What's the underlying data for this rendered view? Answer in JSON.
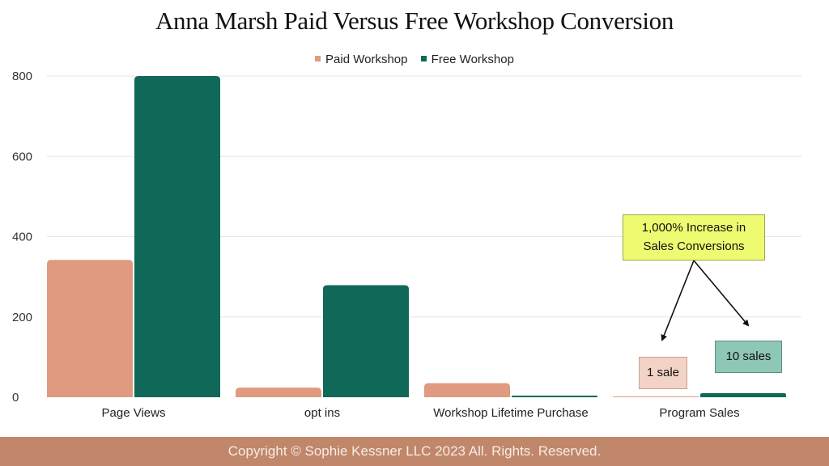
{
  "chart_data": {
    "type": "bar",
    "title": "Anna Marsh Paid Versus Free Workshop Conversion",
    "categories": [
      "Page Views",
      "opt ins",
      "Workshop Lifetime Purchase",
      "Program Sales"
    ],
    "series": [
      {
        "name": "Paid Workshop",
        "color": "#e09a80",
        "values": [
          342,
          24,
          35,
          1
        ]
      },
      {
        "name": "Free Workshop",
        "color": "#106858",
        "values": [
          800,
          279,
          4,
          10
        ]
      }
    ],
    "y_ticks": [
      "0",
      "200",
      "400",
      "600",
      "800"
    ],
    "ylim": [
      0,
      800
    ],
    "grid": true,
    "legend_position": "top-center"
  },
  "annotations": {
    "main_line1": "1,000% Increase in",
    "main_line2": "Sales Conversions",
    "paid_label": "1 sale",
    "free_label": "10 sales"
  },
  "footer": {
    "text": "Copyright © Sophie Kessner LLC 2023 All. Rights. Reserved."
  }
}
